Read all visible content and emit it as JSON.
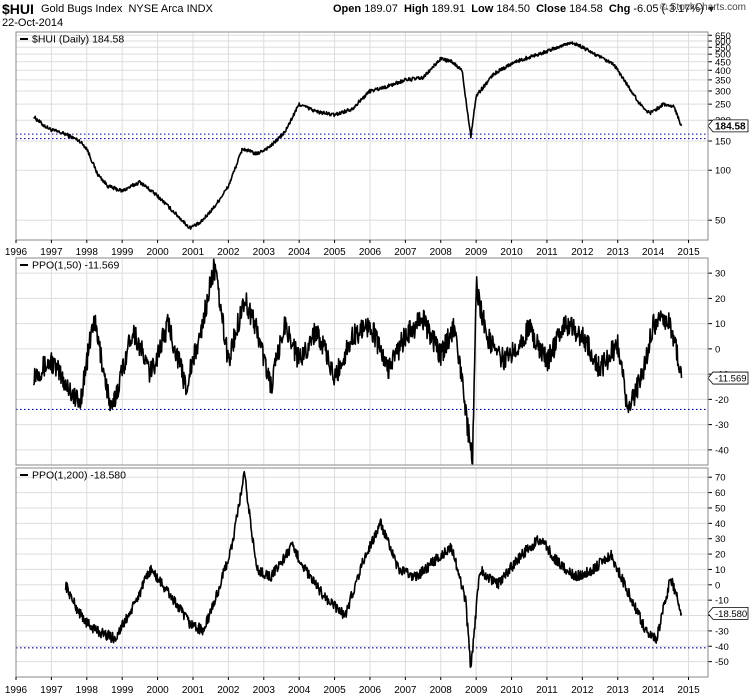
{
  "header": {
    "symbol": "$HUI",
    "name": "Gold Bugs Index",
    "exchange": "NYSE Arca",
    "type": "INDX",
    "date": "22-Oct-2014",
    "open_label": "Open",
    "open": "189.07",
    "high_label": "High",
    "high": "189.91",
    "low_label": "Low",
    "low": "184.50",
    "close_label": "Close",
    "close": "184.58",
    "chg_label": "Chg",
    "chg": "-6.05 (-3.17%)",
    "chg_arrow": "▼",
    "logo": "© StockCharts.com"
  },
  "colors": {
    "line": "#000000",
    "grid": "#dddddd",
    "panel_border": "#888888",
    "reference_line": "#00008b",
    "price_tag_bg": "#ffffff"
  },
  "chart_data": [
    {
      "type": "line",
      "panel": "price",
      "label": "$HUI (Daily) 184.58",
      "scale": "log",
      "ylim": [
        38,
        680
      ],
      "y_ticks": [
        50,
        100,
        150,
        200,
        250,
        300,
        350,
        400,
        450,
        500,
        550,
        600,
        650
      ],
      "last_value_label": "184.58",
      "reference_lines": [
        165,
        155
      ],
      "x_ticks": [
        "1996",
        "1997",
        "1998",
        "1999",
        "2000",
        "2001",
        "2002",
        "2003",
        "2004",
        "2005",
        "2006",
        "2007",
        "2008",
        "2009",
        "2010",
        "2011",
        "2012",
        "2013",
        "2014",
        "2015"
      ],
      "x": [
        1996.5,
        1996.8,
        1997.0,
        1997.4,
        1997.8,
        1998.0,
        1998.3,
        1998.6,
        1999.0,
        1999.5,
        2000.0,
        2000.5,
        2000.9,
        2001.2,
        2001.6,
        2002.0,
        2002.4,
        2002.8,
        2003.2,
        2003.6,
        2004.0,
        2004.5,
        2005.0,
        2005.5,
        2006.0,
        2006.5,
        2007.0,
        2007.5,
        2008.0,
        2008.3,
        2008.6,
        2008.85,
        2009.0,
        2009.5,
        2010.0,
        2010.5,
        2011.0,
        2011.5,
        2011.7,
        2012.0,
        2012.5,
        2012.9,
        2013.3,
        2013.6,
        2013.9,
        2014.3,
        2014.6,
        2014.8
      ],
      "values": [
        210,
        185,
        175,
        165,
        150,
        135,
        95,
        80,
        75,
        85,
        70,
        55,
        45,
        48,
        60,
        80,
        135,
        125,
        140,
        170,
        250,
        225,
        215,
        235,
        300,
        320,
        350,
        360,
        470,
        450,
        400,
        160,
        280,
        380,
        440,
        480,
        520,
        570,
        590,
        550,
        480,
        430,
        320,
        255,
        220,
        250,
        240,
        185
      ]
    },
    {
      "type": "line",
      "panel": "ppo1",
      "label": "PPO(1,50) -11.569",
      "ylim": [
        -46,
        36
      ],
      "y_ticks": [
        30,
        20,
        10,
        0,
        -10,
        -20,
        -30,
        -40
      ],
      "last_value_label": "-11.569",
      "reference_lines": [
        -24
      ],
      "x": [
        1996.5,
        1997.0,
        1997.8,
        1998.2,
        1998.7,
        1999.3,
        1999.8,
        2000.3,
        2000.8,
        2001.2,
        2001.6,
        2002.0,
        2002.45,
        2002.8,
        2003.2,
        2003.6,
        2004.0,
        2004.5,
        2005.0,
        2005.5,
        2006.0,
        2006.5,
        2007.0,
        2007.5,
        2008.0,
        2008.4,
        2008.75,
        2008.9,
        2009.0,
        2009.3,
        2009.8,
        2010.5,
        2011.0,
        2011.5,
        2012.0,
        2012.5,
        2013.0,
        2013.3,
        2013.7,
        2014.0,
        2014.4,
        2014.65,
        2014.8
      ],
      "values": [
        -10,
        -5,
        -22,
        12,
        -25,
        8,
        -10,
        10,
        -15,
        5,
        33,
        -5,
        20,
        8,
        -15,
        10,
        -5,
        8,
        -12,
        5,
        10,
        -8,
        5,
        12,
        -3,
        10,
        -30,
        -45,
        25,
        5,
        -5,
        8,
        -5,
        10,
        5,
        -8,
        2,
        -25,
        -10,
        10,
        12,
        0,
        -11.569
      ]
    },
    {
      "type": "line",
      "panel": "ppo2",
      "label": "PPO(1,200) -18.580",
      "ylim": [
        -60,
        76
      ],
      "y_ticks": [
        70,
        60,
        50,
        40,
        30,
        20,
        10,
        0,
        -10,
        -20,
        -30,
        -40,
        -50
      ],
      "last_value_label": "-18.580",
      "reference_lines": [
        -41
      ],
      "x": [
        1997.4,
        1997.7,
        1998.0,
        1998.3,
        1998.8,
        1999.3,
        1999.8,
        2000.3,
        2000.9,
        2001.3,
        2001.7,
        2002.1,
        2002.45,
        2002.8,
        2003.2,
        2003.8,
        2004.3,
        2004.8,
        2005.3,
        2005.8,
        2006.3,
        2006.8,
        2007.3,
        2007.8,
        2008.3,
        2008.7,
        2008.85,
        2009.1,
        2009.6,
        2010.3,
        2010.8,
        2011.3,
        2011.8,
        2012.3,
        2012.8,
        2013.3,
        2013.8,
        2014.1,
        2014.5,
        2014.8
      ],
      "values": [
        0,
        -15,
        -25,
        -30,
        -35,
        -15,
        10,
        -5,
        -25,
        -30,
        -5,
        25,
        72,
        10,
        5,
        25,
        5,
        -10,
        -20,
        15,
        40,
        10,
        5,
        15,
        25,
        -10,
        -55,
        10,
        0,
        20,
        30,
        15,
        5,
        10,
        20,
        -5,
        -30,
        -35,
        5,
        -18.58
      ]
    }
  ]
}
